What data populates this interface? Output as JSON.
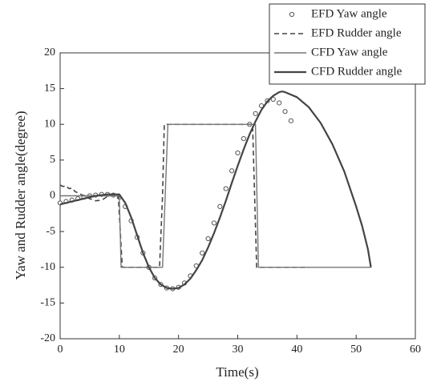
{
  "chart_data": {
    "type": "line",
    "xlabel": "Time(s)",
    "ylabel": "Yaw and Rudder angle(degree)",
    "xlim": [
      0,
      60
    ],
    "xticks": [
      0,
      10,
      20,
      30,
      40,
      50,
      60
    ],
    "ylim": [
      -20,
      20
    ],
    "yticks": [
      -20,
      -15,
      -10,
      -5,
      0,
      5,
      10,
      15,
      20
    ],
    "legend": "upper right",
    "series": [
      {
        "name": "EFD Yaw angle",
        "color": "#555555",
        "line_style": "none",
        "marker": "circle",
        "line_width": 1,
        "x": [
          0,
          1,
          2,
          3,
          4,
          5,
          6,
          7,
          8,
          9,
          10,
          11,
          12,
          13,
          14,
          15,
          16,
          17,
          18,
          19,
          20,
          21,
          22,
          23,
          24,
          25,
          26,
          27,
          28,
          29,
          30,
          31,
          32,
          33,
          34,
          35,
          36,
          37,
          38,
          39
        ],
        "values": [
          -1.0,
          -0.8,
          -0.6,
          -0.4,
          -0.2,
          0,
          0.1,
          0.2,
          0.2,
          0.1,
          -0.2,
          -1.5,
          -3.5,
          -5.8,
          -8,
          -10,
          -11.5,
          -12.4,
          -12.9,
          -13,
          -12.8,
          -12.2,
          -11.2,
          -9.8,
          -8,
          -6,
          -3.8,
          -1.5,
          1,
          3.5,
          6,
          8,
          10,
          11.5,
          12.6,
          13.3,
          13.5,
          13,
          11.8,
          10.5
        ]
      },
      {
        "name": "EFD Rudder angle",
        "color": "#444444",
        "line_style": "dashed",
        "line_width": 1.6,
        "x": [
          0,
          0.5,
          1,
          1.5,
          2,
          2.5,
          3,
          4,
          5,
          6,
          7,
          8,
          9,
          9.8,
          10.5,
          16.8,
          17.3,
          17.6,
          20,
          25,
          30,
          32.5,
          33.2,
          36,
          42
        ],
        "values": [
          1.5,
          1.3,
          1.4,
          1.0,
          1.1,
          0.6,
          0.4,
          0,
          -0.4,
          -0.7,
          -0.6,
          -0.1,
          0.1,
          0.2,
          -10,
          -10,
          0,
          10,
          10,
          10,
          10,
          10,
          -10,
          -10,
          -10
        ]
      },
      {
        "name": "CFD Yaw angle",
        "color": "#777777",
        "line_style": "solid",
        "line_width": 1.4,
        "x": [
          0,
          10,
          10.3,
          17.3,
          18.2,
          25,
          33,
          33.5,
          42,
          52.5
        ],
        "values": [
          0,
          0,
          -10,
          -10,
          10,
          10,
          10,
          -10,
          -10,
          -10
        ]
      },
      {
        "name": "CFD Rudder angle",
        "color": "#444444",
        "line_style": "solid",
        "line_width": 2.2,
        "x": [
          0,
          2,
          4,
          6,
          8,
          10,
          11,
          12,
          13,
          14,
          15,
          16,
          17,
          18,
          19,
          20,
          21,
          22,
          23,
          24,
          25,
          26,
          27,
          28,
          29,
          30,
          31,
          32,
          33,
          34,
          35,
          36,
          37,
          37.5,
          38,
          40,
          42,
          44,
          46,
          48,
          50,
          51,
          52,
          52.5
        ],
        "values": [
          -1.2,
          -0.8,
          -0.4,
          0,
          0.2,
          0.2,
          -1,
          -3,
          -5.5,
          -8,
          -10,
          -11.5,
          -12.4,
          -12.9,
          -13,
          -12.9,
          -12.4,
          -11.6,
          -10.4,
          -9,
          -7.2,
          -5.2,
          -3,
          -0.7,
          1.8,
          4.2,
          6.5,
          8.6,
          10.4,
          12,
          13.2,
          14,
          14.5,
          14.6,
          14.5,
          13.8,
          12.4,
          10.2,
          7.2,
          3.4,
          -1.5,
          -4.2,
          -7.5,
          -10
        ]
      }
    ]
  }
}
